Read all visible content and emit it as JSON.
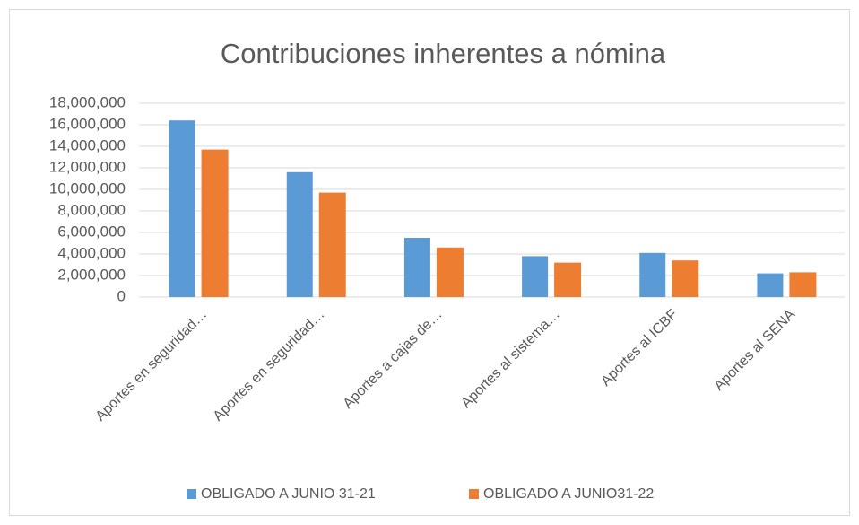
{
  "chart_data": {
    "type": "bar",
    "title": "Contribuciones  inherentes a nómina",
    "categories": [
      "Aportes en seguridad…",
      "Aportes en seguridad…",
      "Aportes a cajas de…",
      "Aportes al sistema…",
      "Aportes al ICBF",
      "Aportes al SENA"
    ],
    "series": [
      {
        "name": "OBLIGADO A JUNIO 31-21",
        "color": "#5b9bd5",
        "values": [
          16400000,
          11600000,
          5500000,
          3800000,
          4100000,
          2200000
        ]
      },
      {
        "name": "OBLIGADO A JUNIO31-22",
        "color": "#ed7d31",
        "values": [
          13700000,
          9700000,
          4600000,
          3200000,
          3400000,
          2300000
        ]
      }
    ],
    "ylim": [
      0,
      18000000
    ],
    "yticks": [
      0,
      {
        "value": 2000000,
        "label": "2,000,000"
      },
      {
        "value": 4000000,
        "label": "4,000,000"
      },
      {
        "value": 6000000,
        "label": "6,000,000"
      },
      {
        "value": 8000000,
        "label": "8,000,000"
      },
      {
        "value": 10000000,
        "label": "10,000,000"
      },
      {
        "value": 12000000,
        "label": "12,000,000"
      },
      {
        "value": 14000000,
        "label": "14,000,000"
      },
      {
        "value": 16000000,
        "label": "16,000,000"
      },
      {
        "value": 18000000,
        "label": "18,000,000"
      }
    ],
    "grid": true,
    "legend": "bottom"
  }
}
